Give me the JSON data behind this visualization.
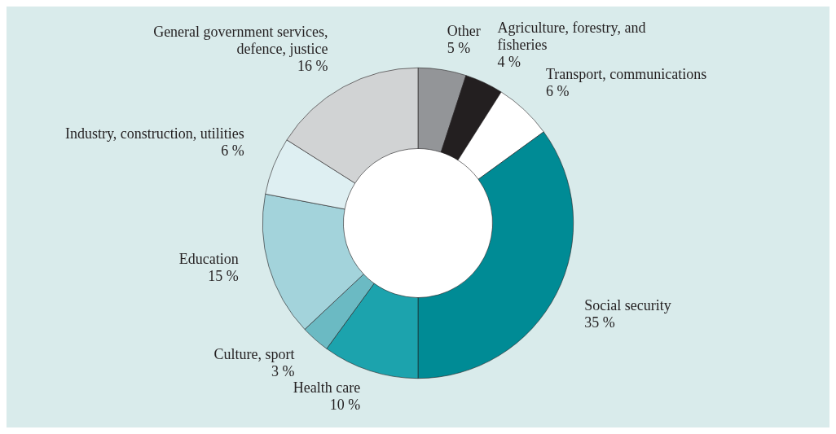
{
  "chart_data": {
    "type": "donut",
    "categories": [
      "Other",
      "Agriculture, forestry, and fisheries",
      "Transport, communications",
      "Social security",
      "Health care",
      "Culture, sport",
      "Education",
      "Industry, construction, utilities",
      "General government services, defence, justice"
    ],
    "values": [
      5,
      4,
      6,
      35,
      10,
      3,
      15,
      6,
      16
    ],
    "value_labels": [
      "5 %",
      "4 %",
      "6 %",
      "35 %",
      "10 %",
      "3 %",
      "15 %",
      "6 %",
      "16 %"
    ],
    "colors": [
      "#939598",
      "#231f20",
      "#ffffff",
      "#008b95",
      "#1ca3ad",
      "#6bbac3",
      "#a3d3db",
      "#deeff2",
      "#d1d3d4"
    ],
    "legend": false
  }
}
